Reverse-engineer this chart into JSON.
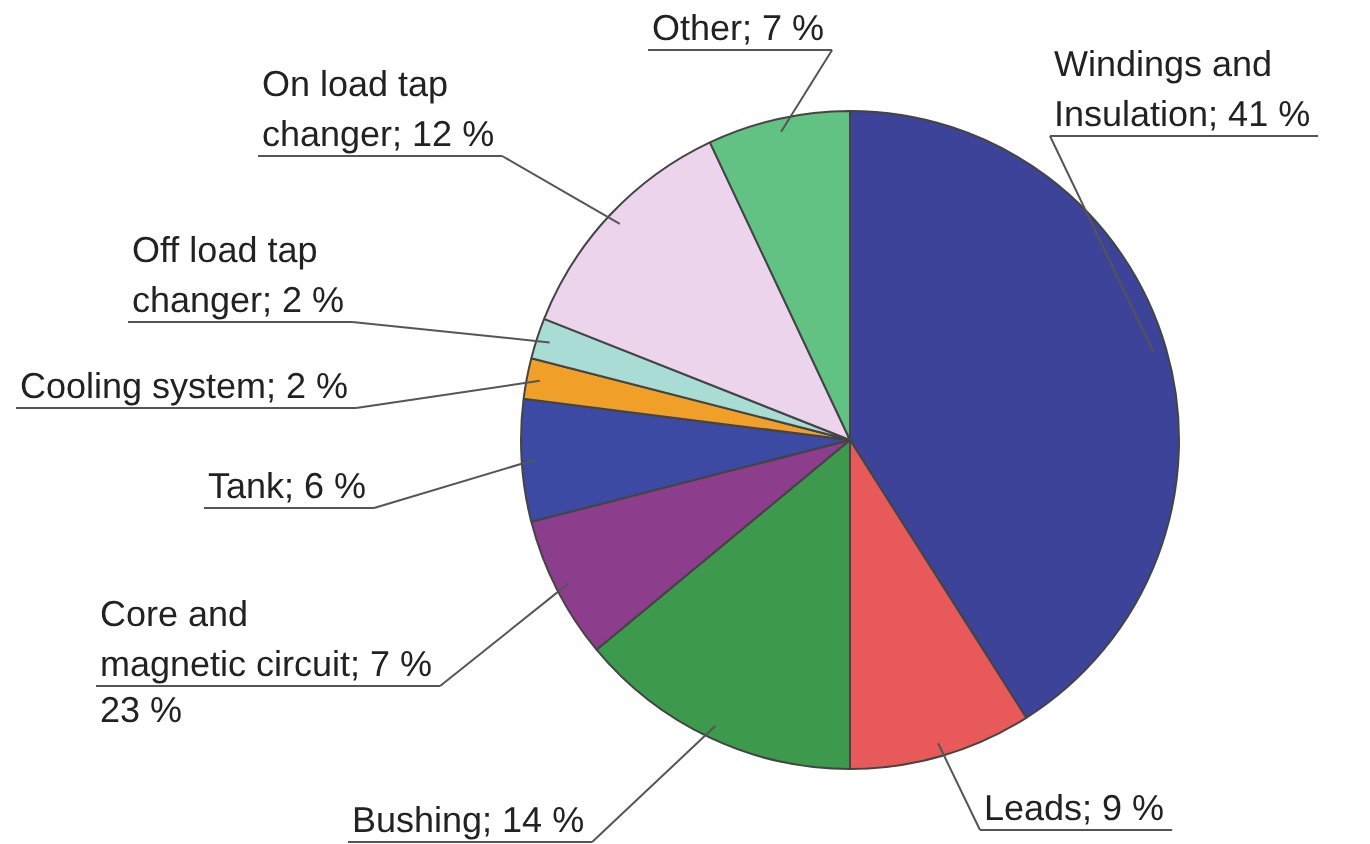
{
  "chart_data": {
    "type": "pie",
    "categories": [
      "Windings and Insulation",
      "Leads",
      "Bushing",
      "Core and magnetic circuit",
      "Tank",
      "Cooling system",
      "Off load tap changer",
      "On load tap changer",
      "Other"
    ],
    "values": [
      41,
      9,
      14,
      7,
      6,
      2,
      2,
      12,
      7
    ],
    "value_labels": [
      "41 %",
      "9 %",
      "14 %",
      "7 %",
      "6 %",
      "2 %",
      "2 %",
      "12 %",
      "7 %"
    ],
    "colors": [
      "#3d4399",
      "#e85a5a",
      "#3d9a4c",
      "#8c3d8c",
      "#3d4aa3",
      "#f0a028",
      "#a8dcd4",
      "#ecd4ec",
      "#62c284"
    ],
    "annotations": [
      "23 %"
    ]
  }
}
